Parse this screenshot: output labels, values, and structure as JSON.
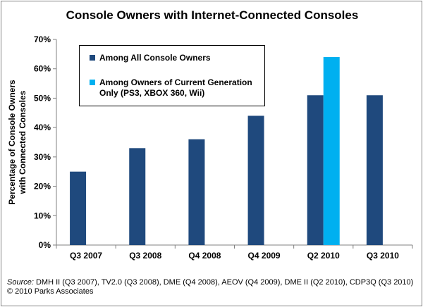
{
  "chart_data": {
    "type": "bar",
    "title": "Console Owners with Internet-Connected Consoles",
    "ylabel_line1": "Percentage of Console Owners",
    "ylabel_line2": "with Connected Consoles",
    "categories": [
      "Q3 2007",
      "Q3 2008",
      "Q4 2008",
      "Q4 2009",
      "Q2 2010",
      "Q3 2010"
    ],
    "ylim": [
      0,
      70
    ],
    "yticks": [
      0,
      10,
      20,
      30,
      40,
      50,
      60,
      70
    ],
    "ytick_labels": [
      "0%",
      "10%",
      "20%",
      "30%",
      "40%",
      "50%",
      "60%",
      "70%"
    ],
    "grid": false,
    "legend_position": "top-left",
    "series": [
      {
        "name": "Among All Console Owners",
        "color": "#1F497D",
        "values": [
          25,
          33,
          36,
          44,
          51,
          51
        ]
      },
      {
        "name": "Among Owners of Current Generation Only (PS3, XBOX 360, Wii)",
        "color": "#00B0F0",
        "values": [
          null,
          null,
          null,
          null,
          64,
          null
        ]
      }
    ]
  },
  "footer": {
    "source_label": "Source:",
    "source_text": "DMH II (Q3 2007), TV2.0 (Q3 2008), DME (Q4 2008), AEOV (Q4 2009),  DME II (Q2 2010), CDP3Q (Q3 2010)",
    "copyright": "© 2010 Parks Associates"
  }
}
